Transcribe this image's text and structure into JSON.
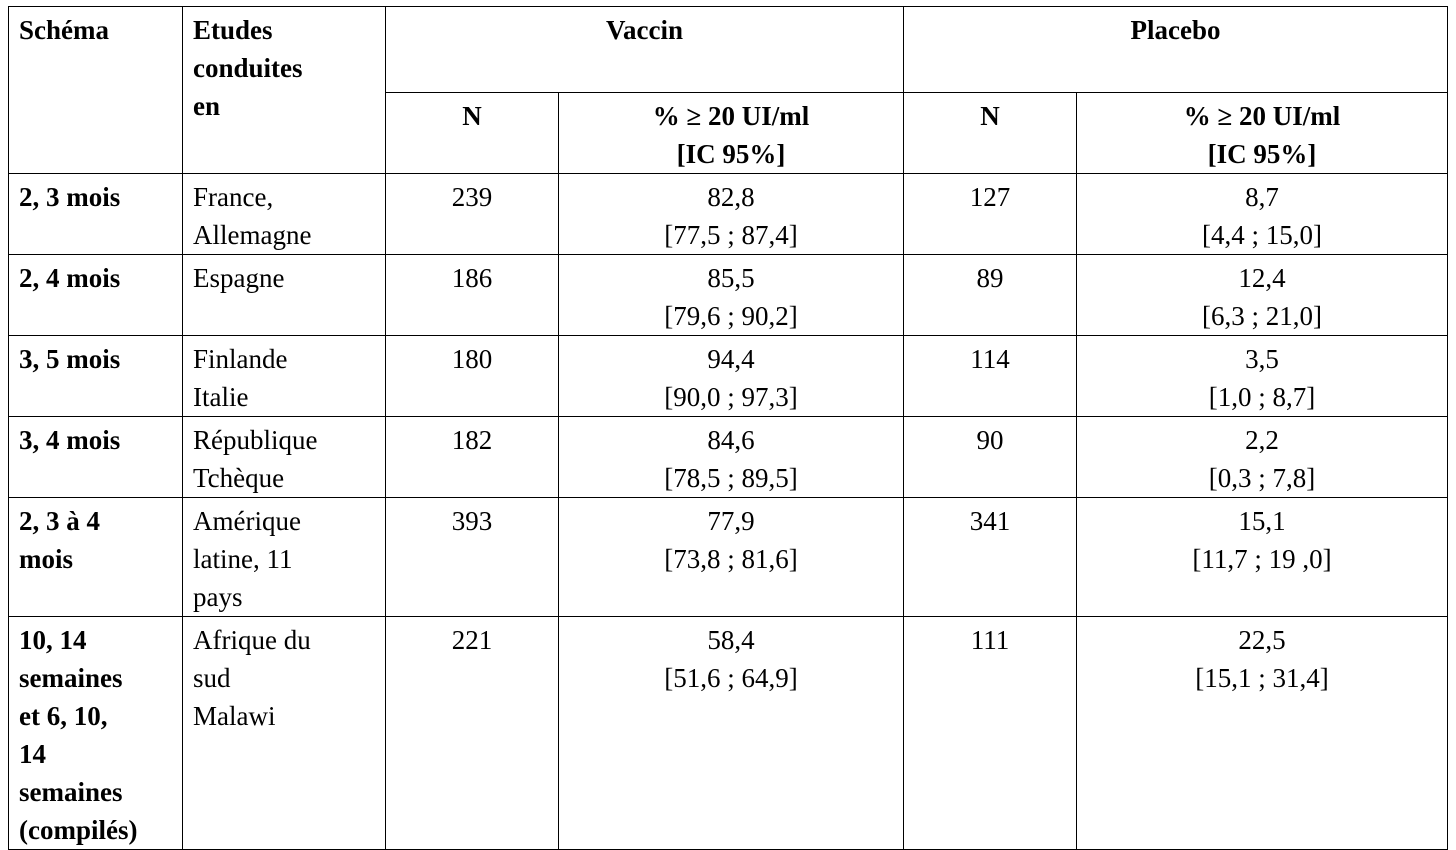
{
  "header": {
    "schema": "Schéma",
    "etudes": "Etudes\nconduites\nen",
    "vaccin": "Vaccin",
    "placebo": "Placebo",
    "n_vaccin": "N",
    "pct_vaccin": "% ≥ 20 UI/ml",
    "ic_vaccin": "[IC 95%]",
    "n_placebo": "N",
    "pct_placebo": "% ≥ 20 UI/ml",
    "ic_placebo": "[IC 95%]"
  },
  "table": {
    "rows": [
      [
        "2, 3 mois",
        "France,\nAllemagne",
        "239",
        "82,8",
        "[77,5 ; 87,4]",
        "127",
        "8,7",
        "[4,4 ; 15,0]"
      ],
      [
        "2, 4 mois",
        "Espagne",
        "186",
        "85,5",
        "[79,6 ; 90,2]",
        "89",
        "12,4",
        "[6,3 ; 21,0]"
      ],
      [
        "3, 5 mois",
        "Finlande\nItalie",
        "180",
        "94,4",
        "[90,0 ; 97,3]",
        "114",
        "3,5",
        "[1,0 ; 8,7]"
      ],
      [
        "3, 4 mois",
        "République\nTchèque",
        "182",
        "84,6",
        "[78,5 ; 89,5]",
        "90",
        "2,2",
        "[0,3 ; 7,8]"
      ],
      [
        "2, 3 à 4\nmois",
        "Amérique\nlatine, 11\npays",
        "393",
        "77,9",
        "[73,8 ; 81,6]",
        "341",
        "15,1",
        "[11,7 ; 19 ,0]"
      ],
      [
        "10, 14\nsemaines\net 6, 10,\n14\nsemaines\n(compilés)",
        "Afrique du\nsud\nMalawi",
        "221",
        "58,4",
        "[51,6 ; 64,9]",
        "111",
        "22,5",
        "[15,1 ; 31,4]"
      ]
    ]
  }
}
